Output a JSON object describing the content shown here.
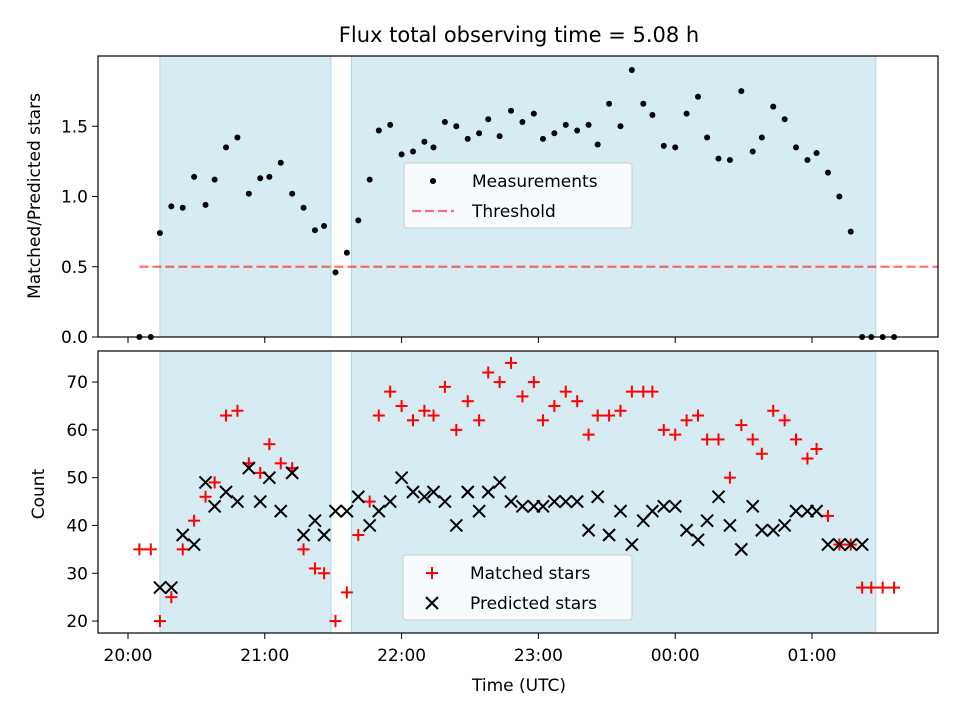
{
  "colors": {
    "shade": "#add8e6",
    "matched": "#ff0000",
    "predicted": "#000000",
    "threshold": "#ff0000",
    "measurement": "#000000"
  },
  "chart_data": [
    {
      "type": "scatter",
      "title": "Flux total observing time = 5.08 h",
      "xlabel": "",
      "ylabel": "Matched/Predicted stars",
      "ylim": [
        0,
        2.0
      ],
      "yticks": [
        0.0,
        0.5,
        1.0,
        1.5
      ],
      "ytick_labels": [
        "0.0",
        "0.5",
        "1.0",
        "1.5"
      ],
      "xlim": [
        "19:52",
        "26:00"
      ],
      "shaded_intervals": [
        [
          "20:14",
          "21:29"
        ],
        [
          "21:38",
          "25:28"
        ]
      ],
      "legend": {
        "position": "center",
        "entries": [
          "Measurements",
          "Threshold"
        ]
      },
      "threshold": {
        "name": "Threshold",
        "value": 0.5,
        "x_range": [
          "20:05",
          "26:55"
        ]
      },
      "series": [
        {
          "name": "Measurements",
          "x": [
            "20:05",
            "20:10",
            "20:14",
            "20:19",
            "20:24",
            "20:29",
            "20:34",
            "20:38",
            "20:43",
            "20:48",
            "20:53",
            "20:58",
            "21:02",
            "21:07",
            "21:12",
            "21:17",
            "21:22",
            "21:26",
            "21:31",
            "21:36",
            "21:41",
            "21:46",
            "21:50",
            "21:55",
            "22:00",
            "22:05",
            "22:10",
            "22:14",
            "22:19",
            "22:24",
            "22:29",
            "22:34",
            "22:38",
            "22:43",
            "22:48",
            "22:53",
            "22:58",
            "23:02",
            "23:07",
            "23:12",
            "23:17",
            "23:22",
            "23:26",
            "23:31",
            "23:36",
            "23:41",
            "23:46",
            "23:50",
            "23:55",
            "24:00",
            "24:05",
            "24:10",
            "24:14",
            "24:19",
            "24:24",
            "24:29",
            "24:34",
            "24:38",
            "24:43",
            "24:48",
            "24:53",
            "24:58",
            "25:02",
            "25:07",
            "25:12",
            "25:17",
            "25:22",
            "25:26",
            "25:31",
            "25:36"
          ],
          "y": [
            0.0,
            0.0,
            0.74,
            0.93,
            0.92,
            1.14,
            0.94,
            1.12,
            1.35,
            1.42,
            1.02,
            1.13,
            1.14,
            1.24,
            1.02,
            0.92,
            0.76,
            0.79,
            0.46,
            0.6,
            0.83,
            1.12,
            1.47,
            1.51,
            1.3,
            1.32,
            1.39,
            1.35,
            1.53,
            1.5,
            1.41,
            1.45,
            1.55,
            1.43,
            1.61,
            1.53,
            1.59,
            1.41,
            1.45,
            1.51,
            1.47,
            1.51,
            1.37,
            1.66,
            1.5,
            1.9,
            1.66,
            1.58,
            1.36,
            1.35,
            1.59,
            1.71,
            1.42,
            1.27,
            1.26,
            1.75,
            1.32,
            1.42,
            1.64,
            1.55,
            1.35,
            1.26,
            1.31,
            1.17,
            1.0,
            0.75,
            0.0,
            0.0,
            0.0,
            0.0
          ]
        }
      ]
    },
    {
      "type": "scatter",
      "xlabel": "Time (UTC)",
      "ylabel": "Count",
      "ylim": [
        17.5,
        76.5
      ],
      "yticks": [
        20,
        30,
        40,
        50,
        60,
        70
      ],
      "ytick_labels": [
        "20",
        "30",
        "40",
        "50",
        "60",
        "70"
      ],
      "xticks": [
        "20:00",
        "21:00",
        "22:00",
        "23:00",
        "00:00",
        "01:00"
      ],
      "xlim": [
        "19:52",
        "26:00"
      ],
      "shaded_intervals": [
        [
          "20:14",
          "21:29"
        ],
        [
          "21:38",
          "25:28"
        ]
      ],
      "legend": {
        "position": "bottom-center",
        "entries": [
          "Matched stars",
          "Predicted stars"
        ]
      },
      "series": [
        {
          "name": "Matched stars",
          "marker": "plus",
          "x": [
            "20:05",
            "20:10",
            "20:14",
            "20:19",
            "20:24",
            "20:29",
            "20:34",
            "20:38",
            "20:43",
            "20:48",
            "20:53",
            "20:58",
            "21:02",
            "21:07",
            "21:12",
            "21:17",
            "21:22",
            "21:26",
            "21:31",
            "21:36",
            "21:41",
            "21:46",
            "21:50",
            "21:55",
            "22:00",
            "22:05",
            "22:10",
            "22:14",
            "22:19",
            "22:24",
            "22:29",
            "22:34",
            "22:38",
            "22:43",
            "22:48",
            "22:53",
            "22:58",
            "23:02",
            "23:07",
            "23:12",
            "23:17",
            "23:22",
            "23:26",
            "23:31",
            "23:36",
            "23:41",
            "23:46",
            "23:50",
            "23:55",
            "24:00",
            "24:05",
            "24:10",
            "24:14",
            "24:19",
            "24:24",
            "24:29",
            "24:34",
            "24:38",
            "24:43",
            "24:48",
            "24:53",
            "24:58",
            "25:02",
            "25:07",
            "25:12",
            "25:17",
            "25:22",
            "25:26",
            "25:31",
            "25:36"
          ],
          "y": [
            35,
            35,
            20,
            25,
            35,
            41,
            46,
            49,
            63,
            64,
            53,
            51,
            57,
            53,
            52,
            35,
            31,
            30,
            20,
            26,
            38,
            45,
            63,
            68,
            65,
            62,
            64,
            63,
            69,
            60,
            66,
            62,
            72,
            70,
            74,
            67,
            70,
            62,
            65,
            68,
            66,
            59,
            63,
            63,
            64,
            68,
            68,
            68,
            60,
            59,
            62,
            63,
            58,
            58,
            50,
            61,
            58,
            55,
            64,
            62,
            58,
            54,
            56,
            42,
            36,
            36,
            27,
            27,
            27,
            27
          ]
        },
        {
          "name": "Predicted stars",
          "marker": "x",
          "x": [
            "20:14",
            "20:19",
            "20:24",
            "20:29",
            "20:34",
            "20:38",
            "20:43",
            "20:48",
            "20:53",
            "20:58",
            "21:02",
            "21:07",
            "21:12",
            "21:17",
            "21:22",
            "21:26",
            "21:31",
            "21:36",
            "21:41",
            "21:46",
            "21:50",
            "21:55",
            "22:00",
            "22:05",
            "22:10",
            "22:14",
            "22:19",
            "22:24",
            "22:29",
            "22:34",
            "22:38",
            "22:43",
            "22:48",
            "22:53",
            "22:58",
            "23:02",
            "23:07",
            "23:12",
            "23:17",
            "23:22",
            "23:26",
            "23:31",
            "23:36",
            "23:41",
            "23:46",
            "23:50",
            "23:55",
            "24:00",
            "24:05",
            "24:10",
            "24:14",
            "24:19",
            "24:24",
            "24:29",
            "24:34",
            "24:38",
            "24:43",
            "24:48",
            "24:53",
            "24:58",
            "25:02",
            "25:07",
            "25:12",
            "25:17",
            "25:22"
          ],
          "y": [
            27,
            27,
            38,
            36,
            49,
            44,
            47,
            45,
            52,
            45,
            50,
            43,
            51,
            38,
            41,
            38,
            43,
            43,
            46,
            40,
            43,
            45,
            50,
            47,
            46,
            47,
            45,
            40,
            47,
            43,
            47,
            49,
            45,
            44,
            44,
            44,
            45,
            45,
            45,
            39,
            46,
            38,
            43,
            36,
            41,
            43,
            44,
            44,
            39,
            37,
            41,
            46,
            40,
            35,
            44,
            39,
            39,
            40,
            43,
            43,
            43,
            36,
            36,
            36,
            36
          ]
        }
      ]
    }
  ]
}
